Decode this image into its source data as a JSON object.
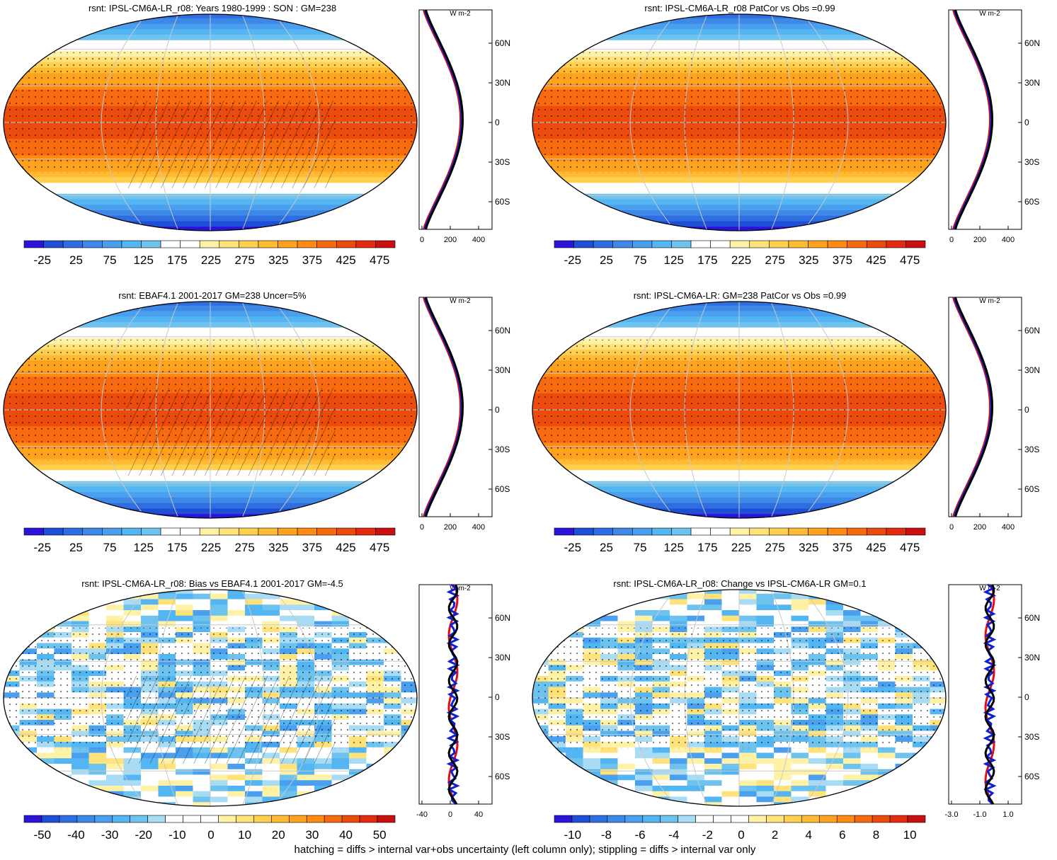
{
  "footnote": "hatching = diffs > internal var+obs uncertainty (left column only); stippling = diffs > internal var only",
  "chart_data": [
    {
      "id": "p1",
      "type": "heatmap",
      "title": "rsnt: IPSL-CM6A-LR_r08: Years 1980-1999 : SON : GM=238",
      "projection": "Robinson",
      "colorbar_labels": [
        "-25",
        "25",
        "75",
        "125",
        "175",
        "225",
        "275",
        "325",
        "375",
        "425",
        "475"
      ],
      "profile": {
        "unit": "W m-2",
        "x_ticks": [
          "0",
          "200",
          "400"
        ],
        "y_ticks": [
          "60N",
          "30N",
          "0",
          "30S",
          "60S"
        ],
        "series_colors": [
          "red",
          "blue",
          "black"
        ]
      },
      "hatching": true,
      "stippling": true
    },
    {
      "id": "p2",
      "type": "heatmap",
      "title": "rsnt: IPSL-CM6A-LR_r08 PatCor vs Obs =0.99",
      "projection": "Robinson",
      "colorbar_labels": [
        "-25",
        "25",
        "75",
        "125",
        "175",
        "225",
        "275",
        "325",
        "375",
        "425",
        "475"
      ],
      "profile": {
        "unit": "W m-2",
        "x_ticks": [
          "0",
          "200",
          "400"
        ],
        "y_ticks": [
          "60N",
          "30N",
          "0",
          "30S",
          "60S"
        ],
        "series_colors": [
          "red",
          "blue",
          "black"
        ]
      },
      "hatching": false,
      "stippling": true
    },
    {
      "id": "p3",
      "type": "heatmap",
      "title": "rsnt: EBAF4.1 2001-2017 GM=238 Uncer=5%",
      "projection": "Robinson",
      "colorbar_labels": [
        "-25",
        "25",
        "75",
        "125",
        "175",
        "225",
        "275",
        "325",
        "375",
        "425",
        "475"
      ],
      "profile": {
        "unit": "W m-2",
        "x_ticks": [
          "0",
          "200",
          "400"
        ],
        "y_ticks": [
          "60N",
          "30N",
          "0",
          "30S",
          "60S"
        ],
        "series_colors": [
          "red",
          "blue",
          "black"
        ]
      },
      "hatching": true,
      "stippling": true
    },
    {
      "id": "p4",
      "type": "heatmap",
      "title": "rsnt: IPSL-CM6A-LR: GM=238 PatCor vs Obs =0.99",
      "projection": "Robinson",
      "colorbar_labels": [
        "-25",
        "25",
        "75",
        "125",
        "175",
        "225",
        "275",
        "325",
        "375",
        "425",
        "475"
      ],
      "profile": {
        "unit": "W m-2",
        "x_ticks": [
          "0",
          "200",
          "400"
        ],
        "y_ticks": [
          "60N",
          "30N",
          "0",
          "30S",
          "60S"
        ],
        "series_colors": [
          "red",
          "blue",
          "black"
        ]
      },
      "hatching": false,
      "stippling": true
    },
    {
      "id": "p5",
      "type": "heatmap",
      "title": "rsnt: IPSL-CM6A-LR_r08: Bias vs EBAF4.1 2001-2017  GM=-4.5",
      "projection": "Robinson",
      "colorbar_labels": [
        "-50",
        "-40",
        "-30",
        "-20",
        "-10",
        "0",
        "10",
        "20",
        "30",
        "40",
        "50"
      ],
      "profile": {
        "unit": "W m-2",
        "x_ticks": [
          "-40",
          "0",
          "40"
        ],
        "y_ticks": [
          "60N",
          "30N",
          "0",
          "30S",
          "60S"
        ],
        "series_colors": [
          "red",
          "blue",
          "black"
        ]
      },
      "hatching": true,
      "stippling": true
    },
    {
      "id": "p6",
      "type": "heatmap",
      "title": "rsnt: IPSL-CM6A-LR_r08: Change vs IPSL-CM6A-LR GM=0.1",
      "projection": "Robinson",
      "colorbar_labels": [
        "-10",
        "-8",
        "-6",
        "-4",
        "-2",
        "0",
        "2",
        "4",
        "6",
        "8",
        "10"
      ],
      "profile": {
        "unit": "W m-2",
        "x_ticks": [
          "-3.0",
          "-1.0",
          "1.0"
        ],
        "y_ticks": [
          "60N",
          "30N",
          "0",
          "30S",
          "60S"
        ],
        "series_colors": [
          "red",
          "blue",
          "black"
        ]
      },
      "hatching": false,
      "stippling": true
    }
  ]
}
